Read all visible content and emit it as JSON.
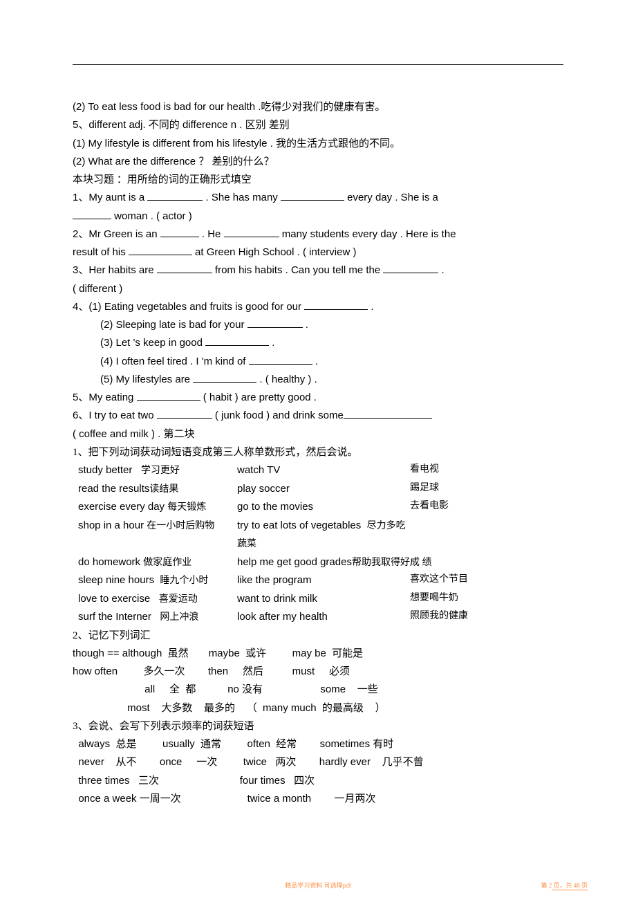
{
  "l1": "  (2) To eat less food is bad for our health .吃得少对我们的健康有害。",
  "l2": "5、different   adj.  不同的          difference   n .  区别 差别",
  "l3": "(1)    My lifestyle is different from his lifestyle .   我的生活方式跟他的不同。",
  "l4": "(2)    What are the difference   ？     差别的什么？",
  "l5": "本块习题  ：用所给的词的正确形式填空",
  "l6a": "1、My  aunt is  a ",
  "l6b": " . She has many ",
  "l6c": " every day .  She is a",
  "l7": " woman . ( actor )",
  "l8a": "2、Mr Green is an ",
  "l8b": " . He ",
  "l8c": " many students every day . Here is the",
  "l9a": "result of his ",
  "l9b": " at Green High School .  ( interview )",
  "l10a": "3、Her habits are ",
  "l10b": " from his habits . Can you tell me the ",
  "l10c": " .",
  "l11": "  ( different )",
  "l12a": "4、(1)   Eating vegetables and fruits is good for our ",
  "l12b": " .",
  "l13a": "(2)    Sleeping late is bad for   your ",
  "l13b": " .",
  "l14a": "(3)    Let 's keep in good ",
  "l14b": " .",
  "l15a": "(4)    I often feel tired . I  'm kind of ",
  "l15b": " .",
  "l16a": "(5)    My lifestyles are ",
  "l16b": " .    ( healthy ) .",
  "l17a": "5、My eating ",
  "l17b": " ( habit ) are pretty good .",
  "l18a": "6、I try to  eat two ",
  "l18b": " ( junk food ) and drink some",
  "l19": "     ( coffee and milk ) .                第二块",
  "l20": "1、把下列动词获动词短语变成第三人称单数形式，然后会说。",
  "r1a": "study better",
  "r1at": "学习更好",
  "r1b": "watch TV",
  "r1bt": "看电视",
  "r2a": "read the results",
  "r2at": "读结果",
  "r2b": "play soccer",
  "r2bt": "踢足球",
  "r3a": "exercise every day",
  "r3at": "每天锻炼",
  "r3b": "go to the movies",
  "r3bt": "去看电影",
  "r4a": "shop in a hour",
  "r4at": "在一小时后购物",
  "r4b": "try to eat lots of vegetables",
  "r4bt": "尽力多吃蔬菜",
  "r5a": "do homework",
  "r5at": "做家庭作业",
  "r5b": "help me get good grades",
  "r5bt": "帮助我取得好成   绩",
  "r6a": "sleep nine hours",
  "r6at": "睡九个小时",
  "r6b": "like the program",
  "r6bt": "喜欢这个节目",
  "r7a": "love to exercise",
  "r7at": "喜爱运动",
  "r7b": "want to drink milk",
  "r7bt": "想要喝牛奶",
  "r8a": "surf the Interner",
  "r8at": "网上冲浪",
  "r8b": "look after my health",
  "r8bt": "照顾我的健康",
  "l21": "  2、记忆下列词汇",
  "v1": "though == although  虽然       maybe  或许         may be  可能是",
  "v2": "how often         多久一次        then     然后          must     必须",
  "v3": "                         all     全  都           no 没有                    some    一些",
  "v4": "                   most    大多数    最多的    （  many much  的最高级    ）",
  "l22": "3、会说、会写下列表示频率的词获短语",
  "f1": "  always  总是         usually  通常         often  经常        sometimes 有时",
  "f2": "  never    从不        once     一次         twice   两次        hardly ever    几乎不曾",
  "f3": "  three times   三次                            four times   四次",
  "f4": "  once a week 一周一次                       twice a month        一月两次",
  "footer_c": "精品学习资料    可选择pdf",
  "footer_r": "第 2 页，共 48 页"
}
